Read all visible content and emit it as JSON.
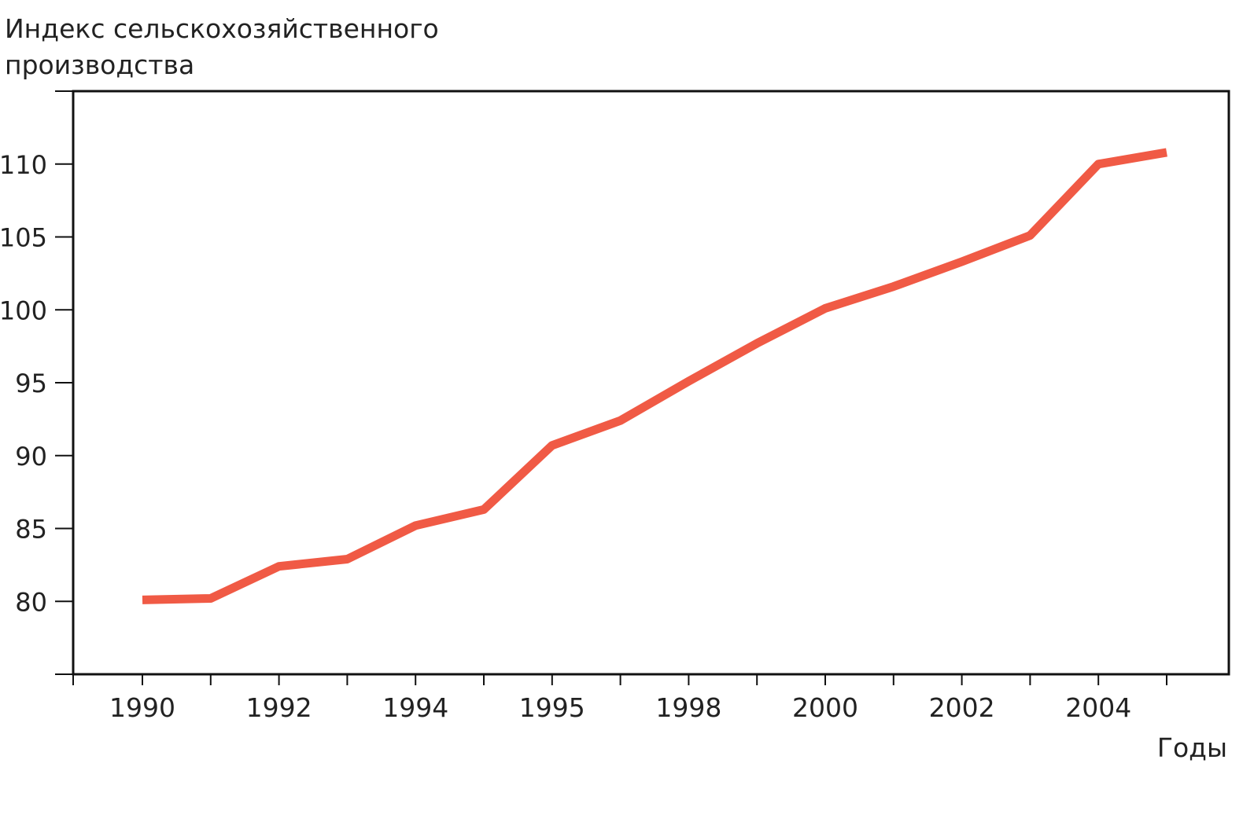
{
  "chart_data": {
    "type": "line",
    "title": "",
    "ylabel_lines": [
      "Индекс сельскохозяйственного",
      "производства"
    ],
    "xlabel": "Годы",
    "x_tick_labels": [
      "1990",
      "1992",
      "1994",
      "1995",
      "1998",
      "2000",
      "2002",
      "2004"
    ],
    "y_ticks": [
      80,
      85,
      90,
      95,
      100,
      105,
      110
    ],
    "ylim": [
      75,
      115
    ],
    "grid": false,
    "line_color": "#f05a45",
    "series": [
      {
        "values": [
          80.1,
          80.2,
          82.4,
          82.9,
          85.2,
          86.3,
          90.7,
          92.4,
          95.1,
          97.7,
          100.1,
          101.6,
          103.3,
          105.1,
          110.0,
          110.8
        ]
      }
    ]
  }
}
